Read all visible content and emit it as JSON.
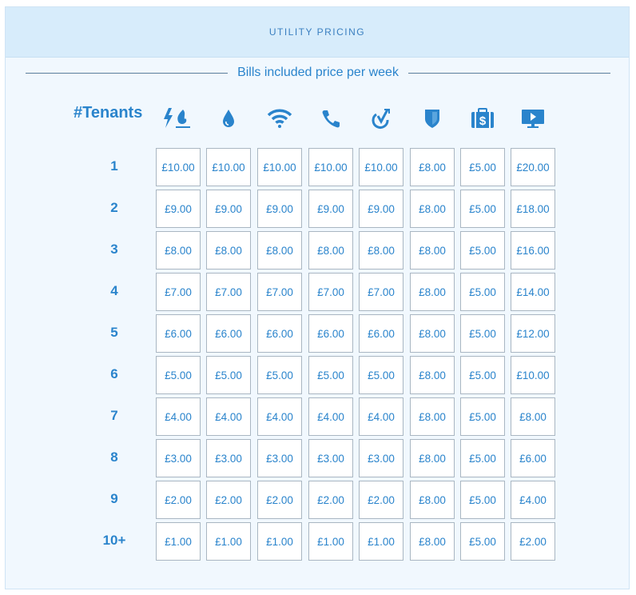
{
  "header": {
    "title": "UTILITY PRICING"
  },
  "subtitle": "Bills included price per week",
  "tenants_header": "#Tenants",
  "colors": {
    "accent": "#2a84cc",
    "header_bg": "#d7ecfb",
    "panel_bg": "#f1f8fe"
  },
  "columns": [
    {
      "icon": "electricity-gas-icon"
    },
    {
      "icon": "water-icon"
    },
    {
      "icon": "wifi-icon"
    },
    {
      "icon": "phone-icon"
    },
    {
      "icon": "tv-licence-icon"
    },
    {
      "icon": "insurance-shield-icon"
    },
    {
      "icon": "cleaning-case-icon"
    },
    {
      "icon": "tv-streaming-icon"
    }
  ],
  "rows": [
    {
      "tenants": "1",
      "prices": [
        "£10.00",
        "£10.00",
        "£10.00",
        "£10.00",
        "£10.00",
        "£8.00",
        "£5.00",
        "£20.00"
      ]
    },
    {
      "tenants": "2",
      "prices": [
        "£9.00",
        "£9.00",
        "£9.00",
        "£9.00",
        "£9.00",
        "£8.00",
        "£5.00",
        "£18.00"
      ]
    },
    {
      "tenants": "3",
      "prices": [
        "£8.00",
        "£8.00",
        "£8.00",
        "£8.00",
        "£8.00",
        "£8.00",
        "£5.00",
        "£16.00"
      ]
    },
    {
      "tenants": "4",
      "prices": [
        "£7.00",
        "£7.00",
        "£7.00",
        "£7.00",
        "£7.00",
        "£8.00",
        "£5.00",
        "£14.00"
      ]
    },
    {
      "tenants": "5",
      "prices": [
        "£6.00",
        "£6.00",
        "£6.00",
        "£6.00",
        "£6.00",
        "£8.00",
        "£5.00",
        "£12.00"
      ]
    },
    {
      "tenants": "6",
      "prices": [
        "£5.00",
        "£5.00",
        "£5.00",
        "£5.00",
        "£5.00",
        "£8.00",
        "£5.00",
        "£10.00"
      ]
    },
    {
      "tenants": "7",
      "prices": [
        "£4.00",
        "£4.00",
        "£4.00",
        "£4.00",
        "£4.00",
        "£8.00",
        "£5.00",
        "£8.00"
      ]
    },
    {
      "tenants": "8",
      "prices": [
        "£3.00",
        "£3.00",
        "£3.00",
        "£3.00",
        "£3.00",
        "£8.00",
        "£5.00",
        "£6.00"
      ]
    },
    {
      "tenants": "9",
      "prices": [
        "£2.00",
        "£2.00",
        "£2.00",
        "£2.00",
        "£2.00",
        "£8.00",
        "£5.00",
        "£4.00"
      ]
    },
    {
      "tenants": "10+",
      "prices": [
        "£1.00",
        "£1.00",
        "£1.00",
        "£1.00",
        "£1.00",
        "£8.00",
        "£5.00",
        "£2.00"
      ]
    }
  ]
}
